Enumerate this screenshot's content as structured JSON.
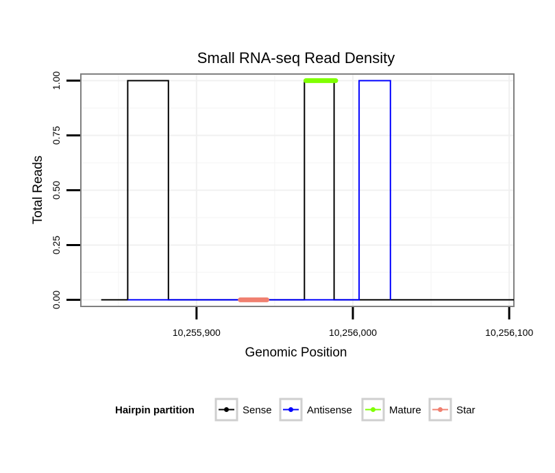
{
  "chart_data": {
    "type": "line",
    "title": "Small RNA-seq Read Density",
    "xlabel": "Genomic Position",
    "ylabel": "Total Reads",
    "xlim": [
      10255826,
      10256103
    ],
    "ylim": [
      -0.03,
      1.03
    ],
    "x_ticks": [
      {
        "value": 10255900,
        "label": "10,255,900"
      },
      {
        "value": 10256000,
        "label": "10,256,000"
      },
      {
        "value": 10256100,
        "label": "10,256,100"
      }
    ],
    "y_ticks": [
      {
        "value": 0.0,
        "label": "0.00"
      },
      {
        "value": 0.25,
        "label": "0.25"
      },
      {
        "value": 0.5,
        "label": "0.50"
      },
      {
        "value": 0.75,
        "label": "0.75"
      },
      {
        "value": 1.0,
        "label": "1.00"
      }
    ],
    "series": [
      {
        "name": "Sense",
        "color": "#000000",
        "x": [
          10255839,
          10255856,
          10255856,
          10255882,
          10255882,
          10255969,
          10255969,
          10255988,
          10255988,
          10256103
        ],
        "y": [
          0,
          0,
          1,
          1,
          0,
          0,
          1,
          1,
          0,
          0
        ]
      },
      {
        "name": "Antisense",
        "color": "#0000ff",
        "x": [
          10255856,
          10255882,
          10255882,
          10256004,
          10256004,
          10256024,
          10256024
        ],
        "y": [
          0,
          0,
          0,
          0,
          1,
          1,
          0
        ]
      },
      {
        "name": "Mature",
        "color": "#7fff00",
        "x": [
          10255970,
          10255989
        ],
        "y": [
          1,
          1
        ]
      },
      {
        "name": "Star",
        "color": "#f08070",
        "x": [
          10255928,
          10255945
        ],
        "y": [
          0,
          0
        ]
      }
    ],
    "legend": {
      "title": "Hairpin partition",
      "position": "bottom",
      "entries": [
        "Sense",
        "Antisense",
        "Mature",
        "Star"
      ]
    }
  }
}
